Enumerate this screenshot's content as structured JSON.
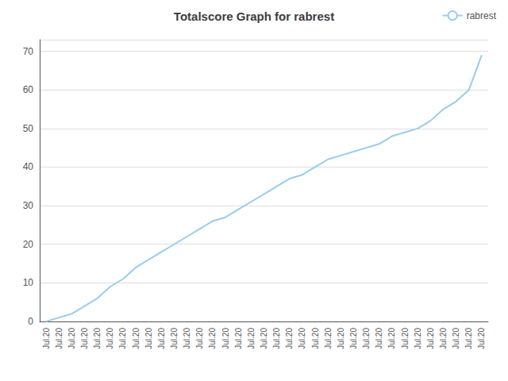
{
  "chart_data": {
    "type": "line",
    "title": "Totalscore Graph for rabrest",
    "categories": [
      "Jul.20",
      "Jul.20",
      "Jul.20",
      "Jul.20",
      "Jul.20",
      "Jul.20",
      "Jul.20",
      "Jul.20",
      "Jul.20",
      "Jul.20",
      "Jul.20",
      "Jul.20",
      "Jul.20",
      "Jul.20",
      "Jul.20",
      "Jul.20",
      "Jul.20",
      "Jul.20",
      "Jul.20",
      "Jul.20",
      "Jul.20",
      "Jul.20",
      "Jul.20",
      "Jul.20",
      "Jul.20",
      "Jul.20",
      "Jul.20",
      "Jul.20",
      "Jul.20",
      "Jul.20",
      "Jul.20",
      "Jul.20",
      "Jul.20",
      "Jul.20",
      "Jul.20"
    ],
    "series": [
      {
        "name": "rabrest",
        "color": "#99CCEE",
        "values": [
          0,
          1,
          2,
          4,
          6,
          9,
          11,
          14,
          16,
          18,
          20,
          22,
          24,
          26,
          27,
          29,
          31,
          33,
          35,
          37,
          38,
          40,
          42,
          43,
          44,
          45,
          46,
          48,
          49,
          50,
          52,
          55,
          57,
          60,
          69
        ]
      }
    ],
    "ylim": [
      0,
      73
    ],
    "yticks": [
      0,
      10,
      20,
      30,
      40,
      50,
      60,
      70
    ],
    "grid": true,
    "legend": "upper right"
  }
}
